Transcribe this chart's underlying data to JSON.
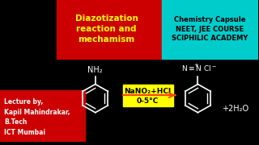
{
  "bg_color": "#000000",
  "top_left_bg": "#cc0000",
  "top_right_bg": "#00cccc",
  "bottom_left_bg": "#cc0000",
  "title_text": "Diazotization\nreaction and\nmechamism",
  "title_color": "#ffff00",
  "capsule_line1": "Chemistry Capsule",
  "capsule_line2": "NEET, JEE COURSE",
  "capsule_line3": "SCIPHILIC ACADEMY",
  "capsule_color": "#000000",
  "lecture_lines": [
    "Lecture by,",
    "Kapil Mahindrakar,",
    "B.Tech",
    "ICT Mumbai"
  ],
  "lecture_color": "#ffffff",
  "reagent_text": "NaNO₂+HCl",
  "condition_text": "0-5°C",
  "reagent_bg": "#ffff00",
  "arrow_color": "#ff4400",
  "product_text": "+2H₂O",
  "nh2_label": "NH₂",
  "diazo_label": "N≡N Cl⁻",
  "label_color": "#ffffff"
}
